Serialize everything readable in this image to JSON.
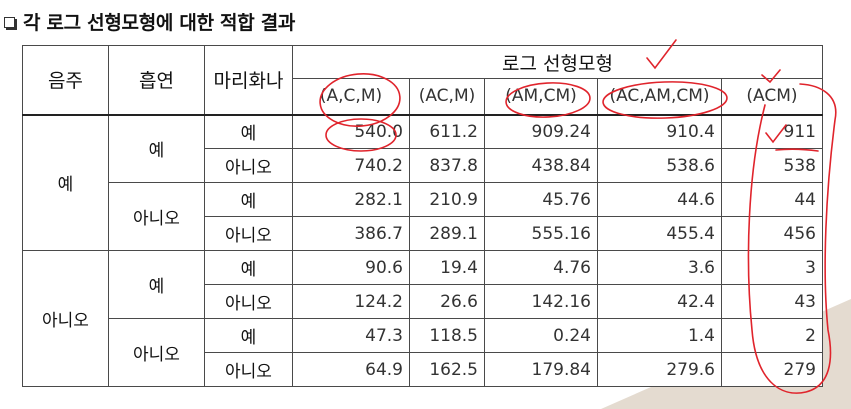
{
  "title": "각 로그 선형모형에 대한 적합 결과",
  "headers": {
    "drink": "음주",
    "smoke": "흡연",
    "marijuana": "마리화나",
    "group": "로그 선형모형"
  },
  "columns": [
    "(A,C,M)",
    "(AC,M)",
    "(AM,CM)",
    "(AC,AM,CM)",
    "(ACM)"
  ],
  "labels": {
    "yes": "예",
    "no": "아니오"
  },
  "rows": [
    [
      "540.0",
      "611.2",
      "909.24",
      "910.4",
      "911"
    ],
    [
      "740.2",
      "837.8",
      "438.84",
      "538.6",
      "538"
    ],
    [
      "282.1",
      "210.9",
      "45.76",
      "44.6",
      "44"
    ],
    [
      "386.7",
      "289.1",
      "555.16",
      "455.4",
      "456"
    ],
    [
      "90.6",
      "19.4",
      "4.76",
      "3.6",
      "3"
    ],
    [
      "124.2",
      "26.6",
      "142.16",
      "42.4",
      "43"
    ],
    [
      "47.3",
      "118.5",
      "0.24",
      "1.4",
      "2"
    ],
    [
      "64.9",
      "162.5",
      "179.84",
      "279.6",
      "279"
    ]
  ],
  "ink_color": "#e0242c",
  "icons": [
    "square-bullet-icon"
  ]
}
